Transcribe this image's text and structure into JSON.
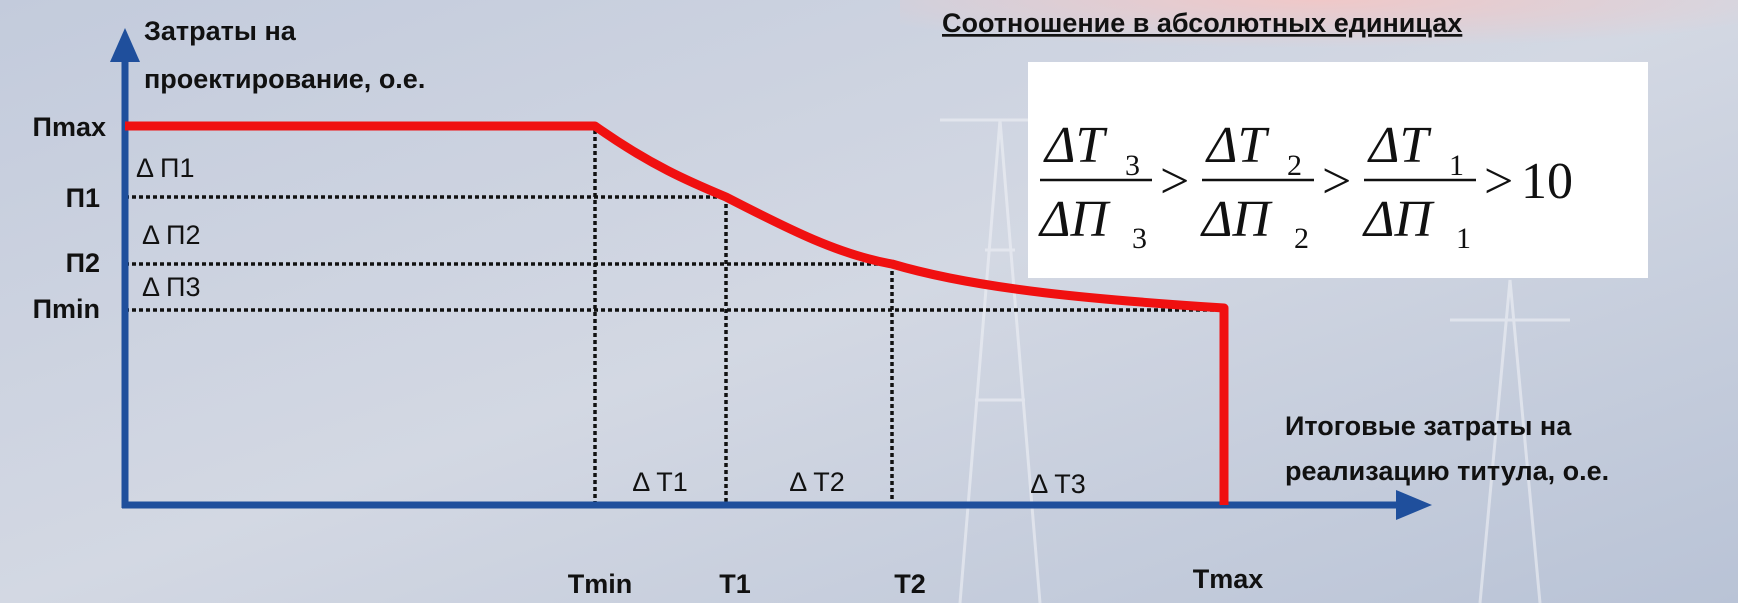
{
  "title": "Соотношение в абсолютных единицах",
  "y_axis_label": [
    "Затраты на",
    "проектирование, о.е."
  ],
  "x_axis_label": [
    "Итоговые затраты на",
    "реализацию титула, о.е."
  ],
  "y_levels": [
    "Пmax",
    "П1",
    "П2",
    "Пmin"
  ],
  "y_deltas": [
    "Δ П1",
    "Δ П2",
    "Δ П3"
  ],
  "x_levels": [
    "Tmin",
    "T1",
    "T2",
    "Tmax"
  ],
  "x_deltas": [
    "Δ T1",
    "Δ T2",
    "Δ T3"
  ],
  "formula": {
    "fractions": [
      {
        "numerator": "ΔT",
        "numerator_sub": "3",
        "denominator": "ΔП",
        "denominator_sub": "3"
      },
      {
        "numerator": "ΔT",
        "numerator_sub": "2",
        "denominator": "ΔП",
        "denominator_sub": "2"
      },
      {
        "numerator": "ΔT",
        "numerator_sub": "1",
        "denominator": "ΔП",
        "denominator_sub": "1"
      }
    ],
    "relation": ">",
    "bound": "10"
  }
}
